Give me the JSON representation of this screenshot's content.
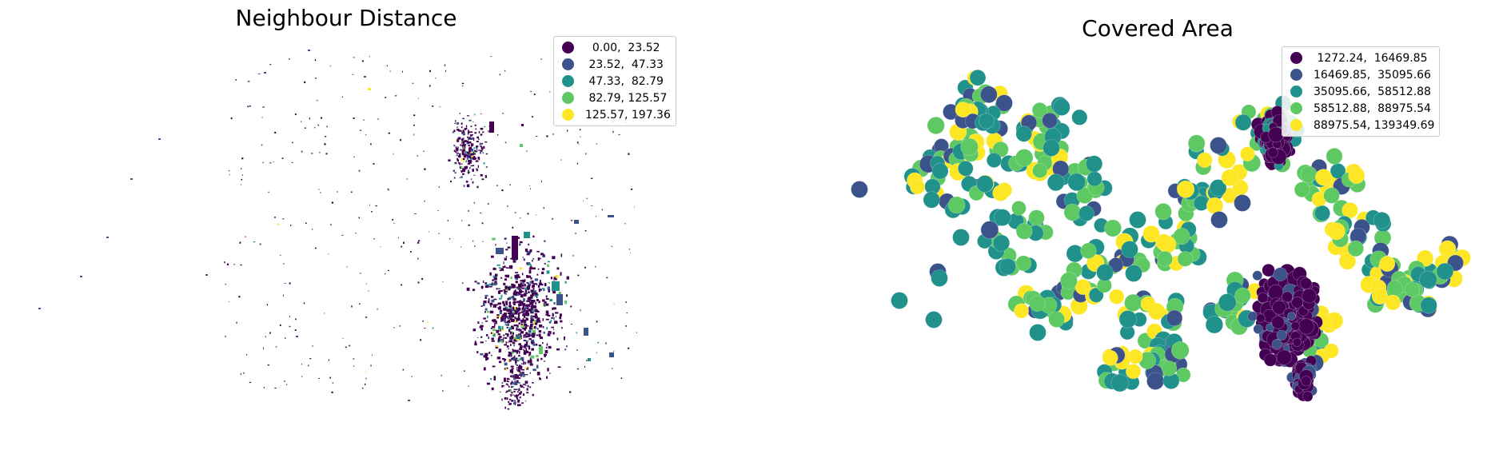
{
  "colors": [
    "#440154",
    "#3b528b",
    "#21918c",
    "#5ec962",
    "#fde725"
  ],
  "left_map": {
    "title": "Neighbour Distance",
    "legend": [
      "  0.00,  23.52",
      " 23.52,  47.33",
      " 47.33,  82.79",
      " 82.79, 125.57",
      "125.57, 197.36"
    ]
  },
  "right_map": {
    "title": "Covered Area",
    "legend": [
      " 1272.24,  16469.85",
      "16469.85,  35095.66",
      "35095.66,  58512.88",
      "58512.88,  88975.54",
      "88975.54, 139349.69"
    ]
  }
}
